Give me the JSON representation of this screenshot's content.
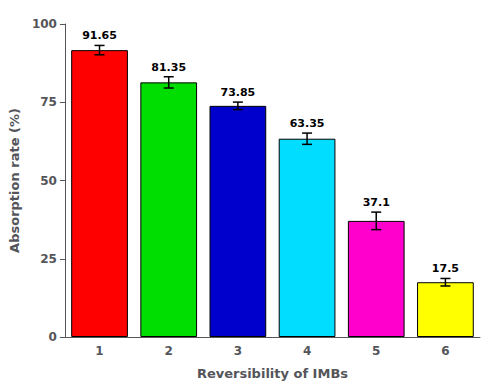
{
  "chart_data": {
    "type": "bar",
    "xlabel": "Reversibility of IMBs",
    "ylabel": "Absorption rate (%)",
    "categories": [
      "1",
      "2",
      "3",
      "4",
      "5",
      "6"
    ],
    "values": [
      91.65,
      81.35,
      73.85,
      63.35,
      37.1,
      17.5
    ],
    "errors": [
      1.5,
      1.8,
      1.2,
      1.8,
      2.8,
      1.2
    ],
    "colors": [
      "#ff0000",
      "#00dd00",
      "#0000cc",
      "#00ddff",
      "#ff00cc",
      "#ffff00"
    ],
    "ylim": [
      0,
      100
    ],
    "yticks": [
      0,
      25,
      50,
      75,
      100
    ],
    "grid": false,
    "data_labels": true
  }
}
